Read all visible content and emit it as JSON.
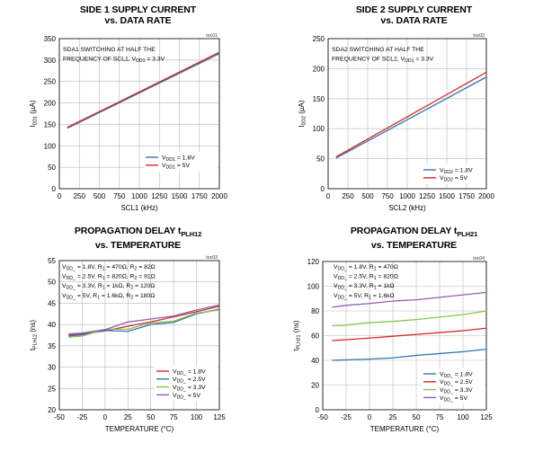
{
  "chart_data": [
    {
      "type": "line",
      "title_line1": "SIDE 1 SUPPLY CURRENT",
      "title_line2": "vs. DATA RATE",
      "code": "toc01",
      "xlabel": "SCL1 (kHz)",
      "ylabel": {
        "main": "I",
        "sub": "DD1",
        "tail": " (µA)"
      },
      "xlim": [
        0,
        2000
      ],
      "ylim": [
        0,
        350
      ],
      "xticks": [
        0,
        250,
        500,
        750,
        1000,
        1250,
        1500,
        1750,
        2000
      ],
      "yticks": [
        0,
        50,
        100,
        150,
        200,
        250,
        300,
        350
      ],
      "annotation": [
        {
          "segs": [
            {
              "t": "SDA1 SWITCHING AT HALF THE"
            }
          ]
        },
        {
          "segs": [
            {
              "t": "FREQUENCY OF SCL1, V"
            },
            {
              "t": "DD1",
              "sub": true
            },
            {
              "t": " = 3.3V"
            }
          ]
        }
      ],
      "legend_position": "bottom-right",
      "series": [
        {
          "name": {
            "main": "V",
            "sub": "DD1",
            "tail": " = 1.8V"
          },
          "color": "#2e75b6",
          "x": [
            100,
            2000
          ],
          "y": [
            141,
            315
          ]
        },
        {
          "name": {
            "main": "V",
            "sub": "DD1",
            "tail": " = 5V"
          },
          "color": "#d62728",
          "x": [
            100,
            2000
          ],
          "y": [
            143,
            318
          ]
        }
      ]
    },
    {
      "type": "line",
      "title_line1": "SIDE 2 SUPPLY CURRENT",
      "title_line2": "vs. DATA RATE",
      "code": "toc02",
      "xlabel": "SCL2 (kHz)",
      "ylabel": {
        "main": "I",
        "sub": "DD2",
        "tail": " (µA)"
      },
      "xlim": [
        0,
        2000
      ],
      "ylim": [
        0,
        250
      ],
      "xticks": [
        0,
        250,
        500,
        750,
        1000,
        1250,
        1500,
        1750,
        2000
      ],
      "yticks": [
        0,
        50,
        100,
        150,
        200,
        250
      ],
      "annotation": [
        {
          "segs": [
            {
              "t": "SDA2 SWITCHING AT HALF THE"
            }
          ]
        },
        {
          "segs": [
            {
              "t": "FREQUENCY OF SCL2, V"
            },
            {
              "t": "DD1",
              "sub": true
            },
            {
              "t": " = 3.3V"
            }
          ]
        }
      ],
      "legend_position": "bottom-right",
      "series": [
        {
          "name": {
            "main": "V",
            "sub": "DD2",
            "tail": " = 1.8V"
          },
          "color": "#2e75b6",
          "x": [
            100,
            2000
          ],
          "y": [
            51,
            186
          ]
        },
        {
          "name": {
            "main": "V",
            "sub": "DD2",
            "tail": " = 5V"
          },
          "color": "#d62728",
          "x": [
            100,
            2000
          ],
          "y": [
            53,
            194
          ]
        }
      ]
    },
    {
      "type": "line",
      "title_line1": "PROPAGATION DELAY t",
      "title_sub": "PLH12",
      "title_line2": "vs. TEMPERATURE",
      "code": "toc03",
      "xlabel": "TEMPERATURE (°C)",
      "ylabel": {
        "main": "t",
        "sub": "PLH12",
        "tail": " (ns)"
      },
      "xlim": [
        -50,
        125
      ],
      "ylim": [
        20,
        55
      ],
      "xticks": [
        -50,
        -25,
        0,
        25,
        50,
        75,
        100,
        125
      ],
      "yticks": [
        20,
        25,
        30,
        35,
        40,
        45,
        50,
        55
      ],
      "annotation": [
        {
          "segs": [
            {
              "t": "V"
            },
            {
              "t": "DD_",
              "sub": true
            },
            {
              "t": " = 1.8V, R"
            },
            {
              "t": "1",
              "sub": true
            },
            {
              "t": " = 470Ω, R"
            },
            {
              "t": "2",
              "sub": true
            },
            {
              "t": " = 82Ω"
            }
          ]
        },
        {
          "segs": [
            {
              "t": "V"
            },
            {
              "t": "DD_",
              "sub": true
            },
            {
              "t": " = 2.5V, R"
            },
            {
              "t": "1",
              "sub": true
            },
            {
              "t": " = 820Ω, R"
            },
            {
              "t": "2",
              "sub": true
            },
            {
              "t": " = 91Ω"
            }
          ]
        },
        {
          "segs": [
            {
              "t": "V"
            },
            {
              "t": "DD_",
              "sub": true
            },
            {
              "t": " = 3.3V, R"
            },
            {
              "t": "1",
              "sub": true
            },
            {
              "t": " = 1kΩ, R"
            },
            {
              "t": "2",
              "sub": true
            },
            {
              "t": " = 120Ω"
            }
          ]
        },
        {
          "segs": [
            {
              "t": "V"
            },
            {
              "t": "DD_",
              "sub": true
            },
            {
              "t": " = 5V, R"
            },
            {
              "t": "1",
              "sub": true
            },
            {
              "t": " = 1.6kΩ, R"
            },
            {
              "t": "2",
              "sub": true
            },
            {
              "t": " = 180Ω"
            }
          ]
        }
      ],
      "legend_position": "bottom-right",
      "series": [
        {
          "name": {
            "main": "V",
            "sub": "DD_",
            "tail": " = 1.8V"
          },
          "color": "#d62728",
          "x": [
            -40,
            -25,
            0,
            25,
            50,
            75,
            100,
            125
          ],
          "y": [
            37.5,
            37.8,
            38.5,
            39.6,
            40.6,
            41.8,
            43.0,
            44.3
          ]
        },
        {
          "name": {
            "main": "V",
            "sub": "DD_",
            "tail": " = 2.5V"
          },
          "color": "#2e75b6",
          "x": [
            -40,
            -25,
            0,
            25,
            50,
            75,
            100,
            125
          ],
          "y": [
            37.3,
            37.6,
            38.6,
            38.4,
            40.0,
            40.5,
            42.5,
            43.6
          ]
        },
        {
          "name": {
            "main": "V",
            "sub": "DD_",
            "tail": " = 3.3V"
          },
          "color": "#8bc34a",
          "x": [
            -40,
            -25,
            0,
            25,
            50,
            75,
            100,
            125
          ],
          "y": [
            37.0,
            37.3,
            38.9,
            38.9,
            40.4,
            40.8,
            42.7,
            43.4
          ]
        },
        {
          "name": {
            "main": "V",
            "sub": "DD_",
            "tail": " = 5V"
          },
          "color": "#8e5fb5",
          "x": [
            -40,
            -25,
            0,
            25,
            50,
            75,
            100,
            125
          ],
          "y": [
            37.8,
            38.0,
            38.8,
            40.6,
            41.3,
            42.0,
            43.4,
            44.6
          ]
        }
      ]
    },
    {
      "type": "line",
      "title_line1": "PROPAGATION DELAY t",
      "title_sub": "PLH21",
      "title_line2": "vs. TEMPERATURE",
      "code": "toc04",
      "xlabel": "TEMPERATURE (°C)",
      "ylabel": {
        "main": "t",
        "sub": "PLH21",
        "tail": " (ns)"
      },
      "xlim": [
        -50,
        125
      ],
      "ylim": [
        0,
        120
      ],
      "xticks": [
        -50,
        -25,
        0,
        25,
        50,
        75,
        100,
        125
      ],
      "yticks": [
        0,
        20,
        40,
        60,
        80,
        100,
        120
      ],
      "annotation": [
        {
          "segs": [
            {
              "t": "V"
            },
            {
              "t": "DD_",
              "sub": true
            },
            {
              "t": " = 1.8V, R"
            },
            {
              "t": "1",
              "sub": true
            },
            {
              "t": " = 470Ω"
            }
          ]
        },
        {
          "segs": [
            {
              "t": "V"
            },
            {
              "t": "DD_",
              "sub": true
            },
            {
              "t": " = 2.5V, R"
            },
            {
              "t": "1",
              "sub": true
            },
            {
              "t": " = 820Ω"
            }
          ]
        },
        {
          "segs": [
            {
              "t": "V"
            },
            {
              "t": "DD_",
              "sub": true
            },
            {
              "t": " = 3.3V, R"
            },
            {
              "t": "1",
              "sub": true
            },
            {
              "t": " = 1kΩ"
            }
          ]
        },
        {
          "segs": [
            {
              "t": "V"
            },
            {
              "t": "DD_",
              "sub": true
            },
            {
              "t": " = 5V, R"
            },
            {
              "t": "1",
              "sub": true
            },
            {
              "t": " = 1.6kΩ"
            }
          ]
        }
      ],
      "legend_position": "bottom-right",
      "series": [
        {
          "name": {
            "main": "V",
            "sub": "DD_",
            "tail": " = 1.8V"
          },
          "color": "#2e75b6",
          "x": [
            -40,
            0,
            25,
            50,
            75,
            100,
            125
          ],
          "y": [
            40,
            41,
            42,
            44,
            45.5,
            47,
            49
          ]
        },
        {
          "name": {
            "main": "V",
            "sub": "DD_",
            "tail": " = 2.5V"
          },
          "color": "#d62728",
          "x": [
            -40,
            0,
            25,
            50,
            75,
            100,
            125
          ],
          "y": [
            56,
            58,
            59.5,
            61,
            62.5,
            64,
            66
          ]
        },
        {
          "name": {
            "main": "V",
            "sub": "DD_",
            "tail": " = 3.3V"
          },
          "color": "#8bc34a",
          "x": [
            -40,
            -25,
            0,
            25,
            50,
            75,
            100,
            125
          ],
          "y": [
            68,
            68.5,
            70.5,
            71.5,
            73,
            75,
            77,
            80
          ]
        },
        {
          "name": {
            "main": "V",
            "sub": "DD_",
            "tail": " = 5V"
          },
          "color": "#8e5fb5",
          "x": [
            -40,
            -25,
            0,
            25,
            50,
            75,
            100,
            125
          ],
          "y": [
            83,
            84.5,
            86,
            88,
            89,
            91,
            93,
            95
          ]
        }
      ]
    }
  ]
}
